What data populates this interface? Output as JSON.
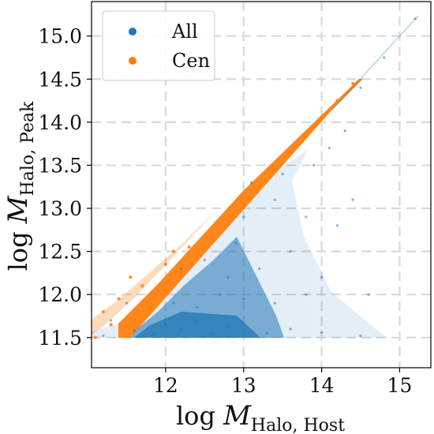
{
  "chart_data": {
    "type": "scatter",
    "xlim": [
      11.05,
      15.4
    ],
    "ylim": [
      11.15,
      15.4
    ],
    "xticks": [
      "12",
      "13",
      "14",
      "15"
    ],
    "yticks": [
      "11.5",
      "12.0",
      "12.5",
      "13.0",
      "13.5",
      "14.0",
      "14.5",
      "15.0"
    ],
    "xlabel": {
      "base": "log ",
      "var": "M",
      "sub": "Halo, Host"
    },
    "ylabel": {
      "base": "log ",
      "var": "M",
      "sub": "Halo, Peak"
    },
    "grid": true,
    "legend_position": "top-left",
    "series": [
      {
        "name": "All",
        "color": "#1f77b4",
        "points": [
          [
            11.2,
            11.52
          ],
          [
            11.6,
            11.58
          ],
          [
            11.85,
            11.55
          ],
          [
            12.0,
            11.65
          ],
          [
            12.2,
            11.6
          ],
          [
            12.4,
            11.7
          ],
          [
            12.6,
            11.55
          ],
          [
            12.8,
            11.62
          ],
          [
            13.0,
            11.58
          ],
          [
            13.3,
            11.55
          ],
          [
            13.6,
            11.6
          ],
          [
            14.0,
            11.56
          ],
          [
            14.5,
            11.52
          ],
          [
            12.1,
            11.9
          ],
          [
            12.4,
            11.85
          ],
          [
            12.7,
            12.0
          ],
          [
            13.0,
            11.95
          ],
          [
            13.4,
            11.9
          ],
          [
            13.8,
            12.0
          ],
          [
            12.5,
            12.4
          ],
          [
            12.9,
            12.6
          ],
          [
            13.2,
            12.3
          ],
          [
            13.6,
            12.5
          ],
          [
            14.0,
            12.2
          ],
          [
            13.0,
            12.9
          ],
          [
            13.4,
            13.1
          ],
          [
            13.8,
            12.9
          ],
          [
            13.5,
            13.4
          ],
          [
            13.9,
            13.5
          ],
          [
            14.1,
            13.7
          ],
          [
            14.3,
            13.9
          ],
          [
            14.5,
            14.4
          ],
          [
            14.8,
            14.75
          ],
          [
            15.2,
            15.2
          ],
          [
            13.1,
            13.3
          ],
          [
            12.8,
            12.2
          ],
          [
            14.2,
            12.8
          ],
          [
            14.4,
            13.1
          ],
          [
            11.5,
            11.9
          ],
          [
            11.3,
            11.7
          ],
          [
            12.2,
            12.3
          ],
          [
            14.6,
            12.0
          ]
        ]
      },
      {
        "name": "Cen",
        "color": "#ff7f0e",
        "points": [
          [
            11.1,
            11.5
          ],
          [
            11.3,
            11.65
          ],
          [
            11.5,
            11.52
          ],
          [
            11.6,
            11.7
          ],
          [
            11.8,
            11.85
          ],
          [
            12.0,
            12.05
          ],
          [
            12.2,
            12.25
          ],
          [
            12.4,
            12.45
          ],
          [
            12.6,
            12.65
          ],
          [
            12.8,
            12.85
          ],
          [
            13.0,
            13.05
          ],
          [
            13.2,
            13.25
          ],
          [
            13.4,
            13.45
          ],
          [
            13.6,
            13.65
          ],
          [
            13.8,
            13.85
          ],
          [
            14.0,
            14.05
          ],
          [
            14.2,
            14.25
          ],
          [
            14.4,
            14.45
          ],
          [
            11.4,
            11.95
          ],
          [
            11.7,
            12.1
          ],
          [
            12.0,
            12.35
          ],
          [
            12.3,
            12.55
          ],
          [
            11.2,
            11.8
          ],
          [
            11.55,
            12.2
          ],
          [
            12.1,
            12.5
          ]
        ]
      }
    ]
  }
}
